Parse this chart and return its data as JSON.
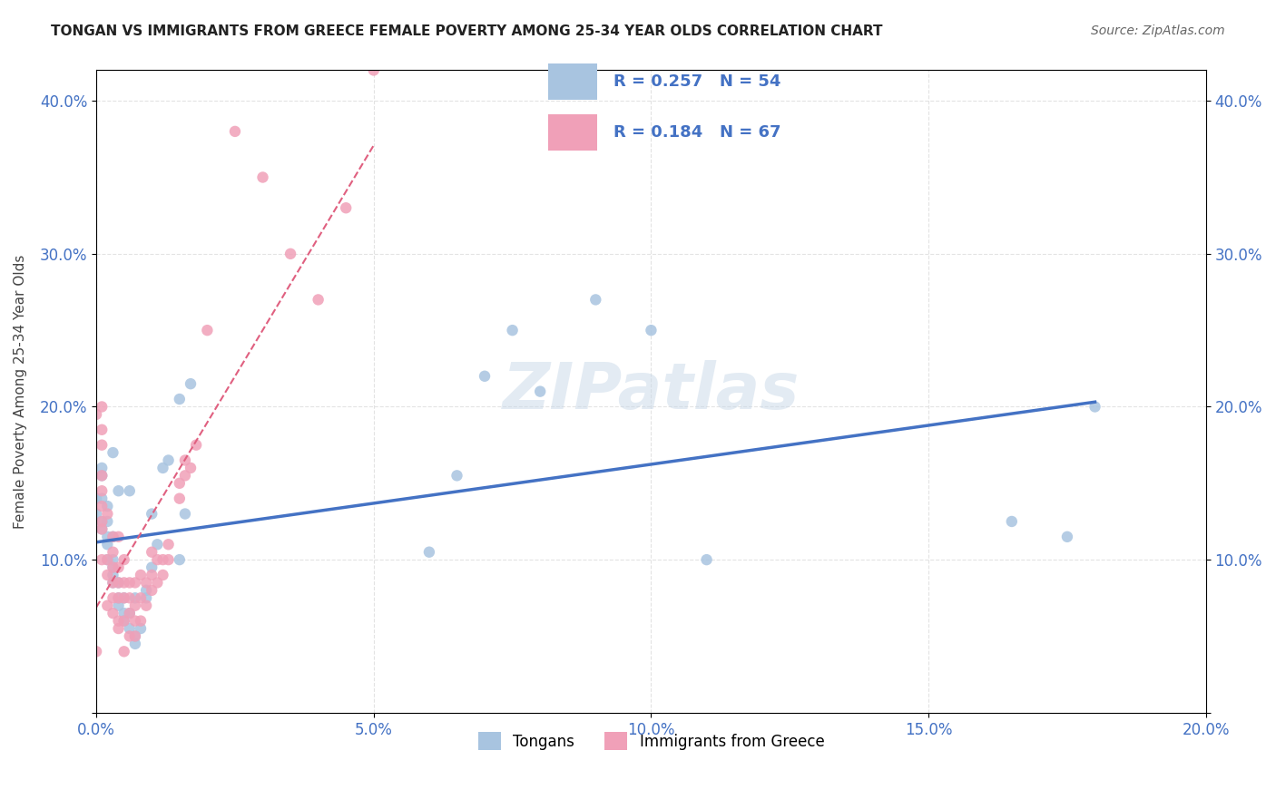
{
  "title": "TONGAN VS IMMIGRANTS FROM GREECE FEMALE POVERTY AMONG 25-34 YEAR OLDS CORRELATION CHART",
  "source": "Source: ZipAtlas.com",
  "xlabel": "",
  "ylabel": "Female Poverty Among 25-34 Year Olds",
  "xlim": [
    0.0,
    0.2
  ],
  "ylim": [
    0.0,
    0.42
  ],
  "xticks": [
    0.0,
    0.05,
    0.1,
    0.15,
    0.2
  ],
  "yticks": [
    0.0,
    0.1,
    0.2,
    0.3,
    0.4
  ],
  "xticklabels": [
    "0.0%",
    "5.0%",
    "10.0%",
    "15.0%",
    "20.0%"
  ],
  "yticklabels": [
    "",
    "10.0%",
    "20.0%",
    "30.0%",
    "40.0%"
  ],
  "background_color": "#ffffff",
  "grid_color": "#dddddd",
  "tongans_color": "#a8c4e0",
  "greece_color": "#f0a0b8",
  "tongans_line_color": "#4472c4",
  "greece_line_color": "#e06080",
  "legend_R_N_color": "#4472c4",
  "watermark": "ZIPatlas",
  "tongans_R": 0.257,
  "tongans_N": 54,
  "greece_R": 0.184,
  "greece_N": 67,
  "tongans_x": [
    0.0,
    0.0,
    0.001,
    0.001,
    0.001,
    0.001,
    0.001,
    0.002,
    0.002,
    0.002,
    0.002,
    0.002,
    0.003,
    0.003,
    0.003,
    0.003,
    0.003,
    0.003,
    0.004,
    0.004,
    0.004,
    0.004,
    0.005,
    0.005,
    0.005,
    0.006,
    0.006,
    0.006,
    0.007,
    0.007,
    0.007,
    0.008,
    0.009,
    0.009,
    0.01,
    0.01,
    0.011,
    0.012,
    0.013,
    0.015,
    0.015,
    0.016,
    0.017,
    0.06,
    0.065,
    0.07,
    0.075,
    0.08,
    0.09,
    0.1,
    0.11,
    0.165,
    0.175,
    0.18
  ],
  "tongans_y": [
    0.13,
    0.14,
    0.12,
    0.125,
    0.14,
    0.155,
    0.16,
    0.1,
    0.11,
    0.115,
    0.125,
    0.135,
    0.085,
    0.09,
    0.095,
    0.1,
    0.115,
    0.17,
    0.07,
    0.075,
    0.085,
    0.145,
    0.06,
    0.065,
    0.075,
    0.055,
    0.065,
    0.145,
    0.045,
    0.05,
    0.075,
    0.055,
    0.075,
    0.08,
    0.095,
    0.13,
    0.11,
    0.16,
    0.165,
    0.1,
    0.205,
    0.13,
    0.215,
    0.105,
    0.155,
    0.22,
    0.25,
    0.21,
    0.27,
    0.25,
    0.1,
    0.125,
    0.115,
    0.2
  ],
  "greece_x": [
    0.0,
    0.0,
    0.001,
    0.001,
    0.001,
    0.001,
    0.001,
    0.001,
    0.001,
    0.001,
    0.001,
    0.002,
    0.002,
    0.002,
    0.002,
    0.003,
    0.003,
    0.003,
    0.003,
    0.003,
    0.003,
    0.004,
    0.004,
    0.004,
    0.004,
    0.004,
    0.004,
    0.005,
    0.005,
    0.005,
    0.005,
    0.005,
    0.006,
    0.006,
    0.006,
    0.006,
    0.007,
    0.007,
    0.007,
    0.007,
    0.008,
    0.008,
    0.008,
    0.009,
    0.009,
    0.01,
    0.01,
    0.01,
    0.011,
    0.011,
    0.012,
    0.012,
    0.013,
    0.013,
    0.015,
    0.015,
    0.016,
    0.016,
    0.017,
    0.018,
    0.02,
    0.025,
    0.03,
    0.035,
    0.04,
    0.045,
    0.05
  ],
  "greece_y": [
    0.04,
    0.195,
    0.1,
    0.12,
    0.125,
    0.135,
    0.145,
    0.155,
    0.175,
    0.185,
    0.2,
    0.07,
    0.09,
    0.1,
    0.13,
    0.065,
    0.075,
    0.085,
    0.095,
    0.105,
    0.115,
    0.055,
    0.06,
    0.075,
    0.085,
    0.095,
    0.115,
    0.04,
    0.06,
    0.075,
    0.085,
    0.1,
    0.05,
    0.065,
    0.075,
    0.085,
    0.05,
    0.06,
    0.07,
    0.085,
    0.06,
    0.075,
    0.09,
    0.07,
    0.085,
    0.08,
    0.09,
    0.105,
    0.085,
    0.1,
    0.09,
    0.1,
    0.1,
    0.11,
    0.14,
    0.15,
    0.155,
    0.165,
    0.16,
    0.175,
    0.25,
    0.38,
    0.35,
    0.3,
    0.27,
    0.33,
    0.42
  ]
}
